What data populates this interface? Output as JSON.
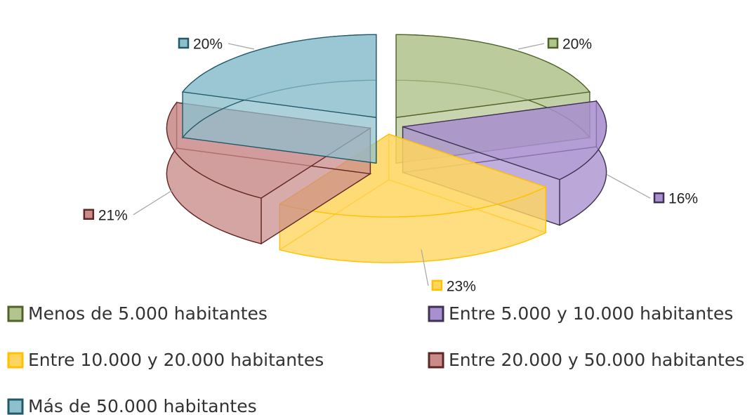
{
  "chart_data": {
    "type": "pie3d",
    "categories": [
      "Menos de 5.000 habitantes",
      "Entre 5.000 y 10.000 habitantes",
      "Entre 10.000 y 20.000 habitantes",
      "Entre 20.000 y 50.000 habitantes",
      "Más de 50.000 habitantes"
    ],
    "values": [
      20,
      16,
      23,
      21,
      20
    ],
    "value_labels": [
      "20%",
      "16%",
      "23%",
      "21%",
      "20%"
    ],
    "colors": [
      "#b3c58f",
      "#a88fcf",
      "#ffd55f",
      "#c98c8b",
      "#8ebfcd"
    ],
    "edge_colors": [
      "#4f6228",
      "#3f3151",
      "#ffc000",
      "#632523",
      "#215968"
    ],
    "legend": "bottom"
  }
}
